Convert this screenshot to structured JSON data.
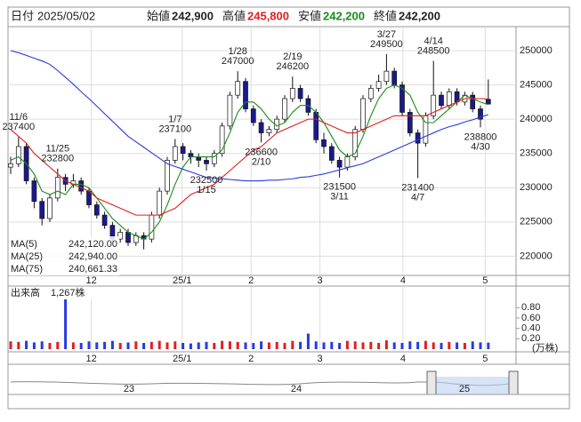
{
  "header": {
    "date_label": "日付",
    "date": "2025/05/02",
    "items": [
      {
        "label": "始値",
        "value": "242,900"
      },
      {
        "label": "高値",
        "value": "245,800"
      },
      {
        "label": "安値",
        "value": "242,200"
      },
      {
        "label": "終値",
        "value": "242,200"
      }
    ]
  },
  "chart_data": [
    {
      "type": "candlestick",
      "up_color": "#ffffff",
      "down_color": "#1a1a8c",
      "open": [
        233000,
        233500,
        236000,
        231000,
        228000,
        225500,
        228500,
        231500,
        230500,
        231000,
        229500,
        227500,
        226000,
        224500,
        222500,
        223500,
        222000,
        223000,
        222500,
        226000,
        229500,
        234000,
        236000,
        235000,
        234500,
        234000,
        233500,
        235000,
        239000,
        243500,
        245500,
        241500,
        239500,
        238000,
        238500,
        240000,
        243000,
        244500,
        243000,
        241000,
        237000,
        236000,
        234000,
        233000,
        234500,
        238500,
        243000,
        244500,
        245500,
        247000,
        245000,
        241000,
        238000,
        236500,
        240500,
        243500,
        242000,
        244000,
        242500,
        243500,
        241500,
        242900
      ],
      "high": [
        234500,
        237400,
        236500,
        231500,
        228500,
        229000,
        232800,
        232000,
        232000,
        231500,
        230000,
        228000,
        226500,
        225000,
        224000,
        224000,
        223500,
        223500,
        226500,
        230000,
        234500,
        237100,
        236500,
        235500,
        235000,
        234500,
        235500,
        239500,
        244000,
        247000,
        246000,
        242000,
        240000,
        239000,
        240500,
        243500,
        246200,
        245000,
        243500,
        241500,
        238000,
        236500,
        234500,
        235000,
        239000,
        243500,
        245000,
        246500,
        249500,
        247500,
        245500,
        241500,
        238500,
        241000,
        248500,
        244000,
        244500,
        244500,
        244000,
        244000,
        242000,
        245800
      ],
      "low": [
        232000,
        233000,
        230500,
        227000,
        224500,
        225000,
        228000,
        229500,
        230000,
        229000,
        227000,
        225500,
        224000,
        222000,
        222000,
        221500,
        221500,
        221000,
        222000,
        225500,
        229000,
        233500,
        234000,
        233500,
        233000,
        232500,
        233000,
        234500,
        238500,
        243000,
        241000,
        239000,
        236600,
        237500,
        238000,
        239500,
        242500,
        242500,
        240500,
        236500,
        235000,
        233500,
        231500,
        232500,
        234000,
        238000,
        242500,
        244000,
        245000,
        244500,
        240500,
        237500,
        231400,
        236000,
        240000,
        241500,
        241500,
        242000,
        242000,
        241000,
        238800,
        242200
      ],
      "close": [
        233500,
        236000,
        231000,
        228000,
        225500,
        228500,
        231500,
        230500,
        231000,
        229500,
        227500,
        226000,
        224500,
        222500,
        223500,
        222000,
        223000,
        222500,
        226000,
        229500,
        234000,
        236000,
        235000,
        234500,
        234000,
        233500,
        235000,
        239000,
        243500,
        245500,
        241500,
        239500,
        238000,
        238500,
        240000,
        243000,
        244500,
        243000,
        241000,
        237000,
        236000,
        234000,
        233000,
        234500,
        238500,
        243000,
        244500,
        245500,
        247000,
        245000,
        241000,
        238000,
        236500,
        240500,
        243500,
        242000,
        244000,
        242500,
        243500,
        241500,
        240000,
        242200
      ],
      "series": [
        {
          "name": "MA(5)",
          "color": "#1a8c1a",
          "value_label": "242,120.00",
          "values": [
            234000,
            234500,
            233500,
            232000,
            229500,
            229000,
            229500,
            229000,
            230500,
            230500,
            230000,
            228500,
            227000,
            225500,
            224500,
            223500,
            223000,
            222500,
            223500,
            225000,
            227500,
            230500,
            233000,
            234500,
            234500,
            234500,
            234500,
            235500,
            238000,
            241000,
            242500,
            242500,
            241500,
            240000,
            239000,
            239500,
            241000,
            242000,
            242000,
            241000,
            239500,
            237500,
            235500,
            234500,
            235000,
            237500,
            240500,
            243000,
            244500,
            245000,
            244500,
            243500,
            241000,
            239500,
            239500,
            240500,
            241500,
            242500,
            243500,
            243000,
            242500,
            242120
          ]
        },
        {
          "name": "MA(25)",
          "color": "#e01e1e",
          "value_label": "242,940.00",
          "values": [
            238500,
            237500,
            236500,
            235000,
            234000,
            233000,
            232000,
            231000,
            230500,
            230000,
            229500,
            228500,
            228000,
            227500,
            227000,
            226500,
            226000,
            226000,
            226000,
            226000,
            226500,
            227000,
            228000,
            229000,
            229500,
            230000,
            230500,
            231500,
            232500,
            233500,
            234500,
            235500,
            236000,
            237000,
            238000,
            238500,
            239000,
            239500,
            240000,
            240000,
            239500,
            239000,
            238500,
            238000,
            238000,
            238500,
            239000,
            239500,
            240000,
            240500,
            240500,
            240500,
            240500,
            240500,
            241000,
            241500,
            242000,
            242500,
            243000,
            243000,
            243000,
            242940
          ]
        },
        {
          "name": "MA(75)",
          "color": "#2a3adf",
          "value_label": "240,661.33",
          "values": [
            250000,
            249700,
            249300,
            248900,
            248500,
            248000,
            247100,
            246100,
            245100,
            244000,
            243000,
            241900,
            240800,
            239700,
            238600,
            237500,
            236700,
            235900,
            235100,
            234300,
            233500,
            233100,
            232700,
            232300,
            231900,
            231500,
            231400,
            231300,
            231200,
            231100,
            231000,
            231000,
            231000,
            231100,
            231100,
            231200,
            231300,
            231500,
            231600,
            231800,
            232000,
            232300,
            232600,
            232900,
            233200,
            233500,
            234000,
            234500,
            235000,
            235500,
            236000,
            236500,
            237000,
            237500,
            238000,
            238500,
            238900,
            239200,
            239600,
            239900,
            240300,
            240661.33
          ]
        }
      ],
      "high_annotations": [
        {
          "date": "11/6",
          "value": 237400
        },
        {
          "date": "11/25",
          "value": 232800
        },
        {
          "date": "1/7",
          "value": 237100
        },
        {
          "date": "1/28",
          "value": 247000
        },
        {
          "date": "2/19",
          "value": 246200
        },
        {
          "date": "3/27",
          "value": 249500
        },
        {
          "date": "4/14",
          "value": 248500
        }
      ],
      "low_annotations": [
        {
          "date": "1/15",
          "value": 232500
        },
        {
          "date": "2/10",
          "value": 236600
        },
        {
          "date": "3/11",
          "value": 231500
        },
        {
          "date": "4/7",
          "value": 231400
        },
        {
          "date": "4/30",
          "value": 238800
        }
      ],
      "ylim": [
        217200,
        253500
      ],
      "yticks": [
        220000,
        225000,
        230000,
        235000,
        240000,
        245000,
        250000
      ],
      "grid": true,
      "xticks": [
        {
          "value": 10.3,
          "label": "12"
        },
        {
          "value": 21.9,
          "label": "25/1"
        },
        {
          "value": 30.7,
          "label": "2"
        },
        {
          "value": 39.5,
          "label": "3"
        },
        {
          "value": 50.1,
          "label": "4"
        },
        {
          "value": 60.6,
          "label": "5"
        }
      ]
    },
    {
      "type": "bar",
      "title": "出来高",
      "value_label": "1,267株",
      "unit": "(万株)",
      "up_color": "#e02020",
      "down_color": "#2a3adf",
      "values": [
        0.15,
        0.14,
        0.16,
        0.13,
        0.15,
        0.12,
        0.14,
        1.06,
        0.13,
        0.12,
        0.15,
        0.13,
        0.14,
        0.16,
        0.12,
        0.13,
        0.15,
        0.12,
        0.14,
        0.16,
        0.13,
        0.15,
        0.12,
        0.11,
        0.13,
        0.14,
        0.12,
        0.16,
        0.15,
        0.14,
        0.13,
        0.12,
        0.15,
        0.13,
        0.14,
        0.12,
        0.16,
        0.14,
        0.3,
        0.15,
        0.13,
        0.14,
        0.12,
        0.16,
        0.15,
        0.13,
        0.14,
        0.12,
        0.17,
        0.13,
        0.12,
        0.15,
        0.14,
        0.16,
        0.13,
        0.12,
        0.14,
        0.13,
        0.12,
        0.15,
        0.13,
        0.1267
      ],
      "ylim": [
        0,
        1.2
      ],
      "yticks": [
        {
          "value": 0.2,
          "label": "0.20"
        },
        {
          "value": 0.4,
          "label": "0.40"
        },
        {
          "value": 0.6,
          "label": "0.60"
        },
        {
          "value": 0.8,
          "label": "0.80"
        }
      ],
      "xticks": [
        {
          "value": 10.3,
          "label": "12"
        },
        {
          "value": 21.9,
          "label": "25/1"
        },
        {
          "value": 30.7,
          "label": "2"
        },
        {
          "value": 39.5,
          "label": "3"
        },
        {
          "value": 50.1,
          "label": "4"
        },
        {
          "value": 60.6,
          "label": "5"
        }
      ]
    }
  ],
  "navigator": {
    "labels": [
      "23",
      "24",
      "25"
    ]
  }
}
